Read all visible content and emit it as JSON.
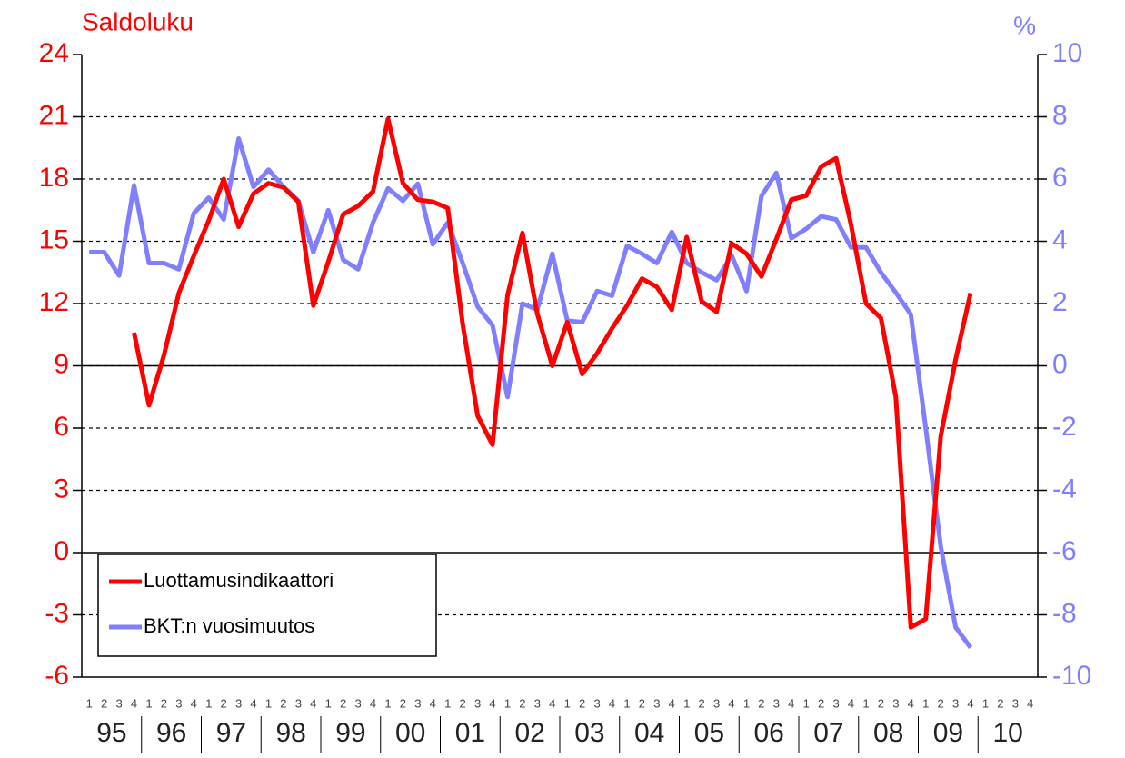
{
  "chart_data": {
    "type": "line",
    "ylabel": "Saldoluku",
    "y2label": "%",
    "categories": [
      "1",
      "2",
      "3",
      "4",
      "1",
      "2",
      "3",
      "4",
      "1",
      "2",
      "3",
      "4",
      "1",
      "2",
      "3",
      "4",
      "1",
      "2",
      "3",
      "4",
      "1",
      "2",
      "3",
      "4",
      "1",
      "2",
      "3",
      "4",
      "1",
      "2",
      "3",
      "4",
      "1",
      "2",
      "3",
      "4",
      "1",
      "2",
      "3",
      "4",
      "1",
      "2",
      "3",
      "4",
      "1",
      "2",
      "3",
      "4",
      "1",
      "2",
      "3",
      "4",
      "1",
      "2",
      "3",
      "4",
      "1",
      "2",
      "3",
      "4",
      "1",
      "2",
      "3",
      "4"
    ],
    "groups": [
      "95",
      "96",
      "97",
      "98",
      "99",
      "00",
      "01",
      "02",
      "03",
      "04",
      "05",
      "06",
      "07",
      "08",
      "09",
      "10"
    ],
    "series": [
      {
        "name": "Luottamusindikaattori",
        "color": "#ff0000",
        "axis": "y",
        "values": [
          null,
          null,
          null,
          10.6,
          7.1,
          9.5,
          12.5,
          14.3,
          16.0,
          18.0,
          15.7,
          17.3,
          17.8,
          17.6,
          16.9,
          11.9,
          14.0,
          16.3,
          16.7,
          17.4,
          20.9,
          17.8,
          17.0,
          16.9,
          16.6,
          11.0,
          6.6,
          5.2,
          12.4,
          15.4,
          11.5,
          9.0,
          11.1,
          8.6,
          9.6,
          10.8,
          11.9,
          13.2,
          12.8,
          11.7,
          15.2,
          12.1,
          11.6,
          14.9,
          14.4,
          13.3,
          15.1,
          17.0,
          17.2,
          18.6,
          19.0,
          15.8,
          12.0,
          11.3,
          7.5,
          -3.6,
          -3.2,
          5.6,
          9.3,
          12.5,
          null,
          null,
          null,
          null
        ]
      },
      {
        "name": "BKT:n vuosimuutos",
        "color": "#8080ff",
        "axis": "y2",
        "values": [
          3.65,
          3.65,
          2.9,
          5.8,
          3.3,
          3.3,
          3.1,
          4.9,
          5.4,
          4.7,
          7.3,
          5.75,
          6.3,
          5.75,
          5.3,
          3.65,
          5.0,
          3.4,
          3.1,
          4.6,
          5.7,
          5.3,
          5.85,
          3.9,
          4.6,
          3.3,
          1.9,
          1.3,
          -1.0,
          2.0,
          1.8,
          3.6,
          1.45,
          1.4,
          2.4,
          2.25,
          3.85,
          3.6,
          3.3,
          4.3,
          3.3,
          3.0,
          2.75,
          3.55,
          2.4,
          5.45,
          6.2,
          4.1,
          4.4,
          4.8,
          4.7,
          3.8,
          3.8,
          3.0,
          2.35,
          1.65,
          -2.0,
          -5.8,
          -8.4,
          -9.05,
          null,
          null,
          null,
          null
        ]
      }
    ],
    "ylim": [
      -6,
      24
    ],
    "yticks": [
      -6,
      -3,
      0,
      3,
      6,
      9,
      12,
      15,
      18,
      21,
      24
    ],
    "ycolor": "#ff0000",
    "y2lim": [
      -10,
      10
    ],
    "y2ticks": [
      -10,
      -8,
      -6,
      -4,
      -2,
      0,
      2,
      4,
      6,
      8,
      10
    ],
    "y2color": "#8080ff",
    "grid": true,
    "legend": "lower left"
  }
}
